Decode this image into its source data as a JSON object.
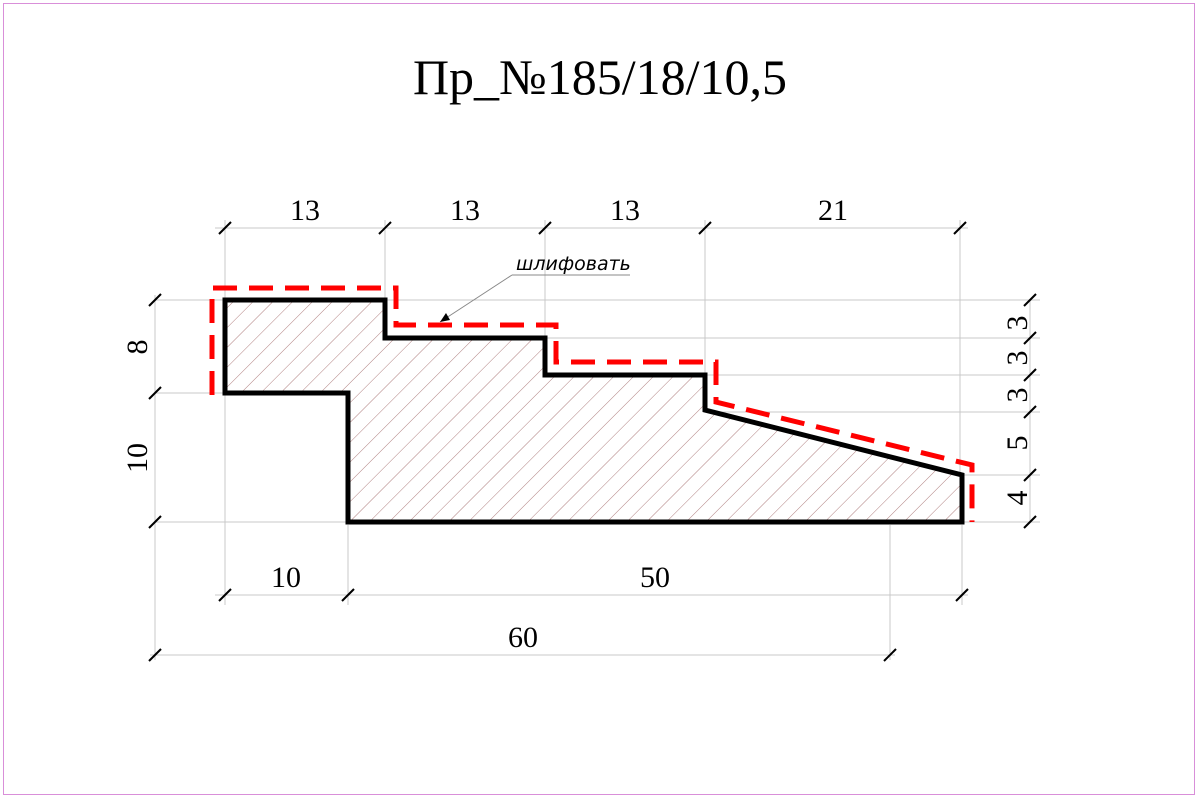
{
  "drawing": {
    "title": "Пр_№185/18/10,5",
    "note": "шлифовать",
    "colors": {
      "profile": "#000000",
      "grind_line": "#ff0000",
      "hatch": "#b08080",
      "thin_lines": "#c8c8c8",
      "frame": "#d98fd9"
    },
    "dimensions": {
      "top": [
        "13",
        "13",
        "13",
        "21"
      ],
      "bottom_left": "10",
      "bottom_right": "50",
      "bottom_total": "60",
      "left_upper": "8",
      "left_lower": "10",
      "right": [
        "3",
        "3",
        "3",
        "5",
        "4"
      ]
    }
  }
}
